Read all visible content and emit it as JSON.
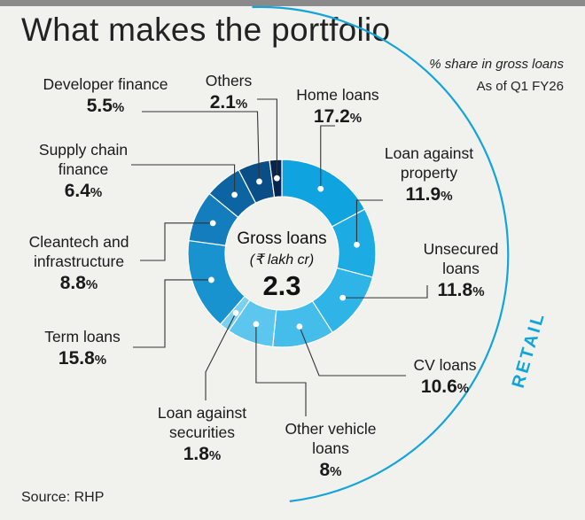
{
  "title": "What makes the portfolio",
  "notes": {
    "share": "% share in gross loans",
    "period": "As of Q1 FY26"
  },
  "source": "Source: RHP",
  "center": {
    "title": "Gross loans",
    "unit": "(₹ lakh cr)",
    "value": "2.3"
  },
  "retail_label": "RETAIL",
  "colors": {
    "background": "#f1f1ee",
    "retail_arc": "#12a4da",
    "leader_line": "#333333"
  },
  "chart_data": {
    "type": "pie",
    "title": "What makes the portfolio",
    "unit": "% share in gross loans",
    "donut": true,
    "retail_group": [
      "Home loans",
      "Loan against property",
      "Unsecured loans",
      "CV loans",
      "Other vehicle loans"
    ],
    "slices": [
      {
        "label": "Home loans",
        "value": 17.2,
        "value_text": "17.2",
        "color": "#0fa4e0"
      },
      {
        "label": "Loan against property",
        "value": 11.9,
        "value_text": "11.9",
        "color": "#1cabe3"
      },
      {
        "label": "Unsecured loans",
        "value": 11.8,
        "value_text": "11.8",
        "color": "#2eb4e7"
      },
      {
        "label": "CV loans",
        "value": 10.6,
        "value_text": "10.6",
        "color": "#44bdea"
      },
      {
        "label": "Other vehicle loans",
        "value": 8,
        "value_text": "8",
        "color": "#5dc6ee"
      },
      {
        "label": "Loan against securities",
        "value": 1.8,
        "value_text": "1.8",
        "color": "#7ad1f1"
      },
      {
        "label": "Term loans",
        "value": 15.8,
        "value_text": "15.8",
        "color": "#1893d0"
      },
      {
        "label": "Cleantech and infrastructure",
        "value": 8.8,
        "value_text": "8.8",
        "color": "#137dbe"
      },
      {
        "label": "Supply chain finance",
        "value": 6.4,
        "value_text": "6.4",
        "color": "#0d64a3"
      },
      {
        "label": "Developer finance",
        "value": 5.5,
        "value_text": "5.5",
        "color": "#094e86"
      },
      {
        "label": "Others",
        "value": 2.1,
        "value_text": "2.1",
        "color": "#06244f"
      }
    ]
  },
  "labels": {
    "others": {
      "name": "Others",
      "value": "2.1"
    },
    "developer": {
      "name": "Developer finance",
      "value": "5.5"
    },
    "supply": {
      "line1": "Supply chain",
      "line2": "finance",
      "value": "6.4"
    },
    "cleantech": {
      "line1": "Cleantech and",
      "line2": "infrastructure",
      "value": "8.8"
    },
    "term": {
      "name": "Term loans",
      "value": "15.8"
    },
    "las": {
      "line1": "Loan against",
      "line2": "securities",
      "value": "1.8"
    },
    "ovl": {
      "line1": "Other vehicle",
      "line2": "loans",
      "value": "8"
    },
    "cv": {
      "name": "CV loans",
      "value": "10.6"
    },
    "unsecured": {
      "line1": "Unsecured",
      "line2": "loans",
      "value": "11.8"
    },
    "lap": {
      "line1": "Loan against",
      "line2": "property",
      "value": "11.9"
    },
    "home": {
      "name": "Home loans",
      "value": "17.2"
    },
    "pct_sign": "%"
  }
}
